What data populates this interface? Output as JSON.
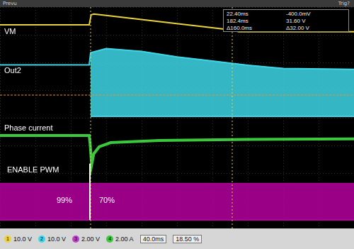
{
  "chart_data": {
    "type": "line",
    "xlim": [
      -80,
      320
    ],
    "xticks": [
      -80,
      -40,
      0,
      40,
      80,
      120,
      160,
      200,
      240,
      280,
      320
    ],
    "ylim": [
      -4,
      4
    ],
    "yticks": [
      -4,
      -3,
      -2,
      -1,
      0,
      1,
      2,
      3,
      4
    ],
    "grid": true,
    "tick_labels": false,
    "series": [
      {
        "name": "VM",
        "color": "#e8d43a",
        "x": [
          -80,
          20.8,
          23,
          26,
          40,
          180,
          190,
          320
        ],
        "values": [
          3.36,
          3.36,
          3.72,
          3.75,
          3.7,
          3.18,
          3.11,
          3.11
        ]
      },
      {
        "name": "Out2",
        "color": "#3ed6e6",
        "x": [
          -80,
          20.8,
          22.4,
          40,
          80,
          120,
          160,
          200,
          240,
          320
        ],
        "values": [
          1.91,
          1.91,
          2.35,
          2.5,
          2.4,
          2.2,
          2.05,
          1.9,
          1.78,
          1.75
        ],
        "low": [
          null,
          null,
          0.05,
          0.05,
          0.05,
          0.05,
          0.05,
          0.05,
          0.05,
          0.05
        ]
      },
      {
        "name": "Phase current",
        "color": "#3cc83c",
        "x": [
          -80,
          20.8,
          22,
          23.5,
          26,
          32,
          45,
          100,
          200,
          320
        ],
        "values": [
          -0.64,
          -0.64,
          -1.0,
          -1.71,
          -1.3,
          -1.05,
          -0.9,
          -0.82,
          -0.78,
          -0.76
        ]
      },
      {
        "name": "ENABLE PWM",
        "color": "#b4009c",
        "x": [
          -80,
          320
        ],
        "values": [
          -2.37,
          -2.37
        ],
        "low": [
          -3.69,
          -3.69
        ]
      }
    ],
    "annotations": [
      {
        "text": "99%"
      },
      {
        "text": "70%"
      }
    ],
    "lines": [
      {
        "x": [
          21.6,
          21.6
        ],
        "y": [
          -1.66,
          -3.69
        ],
        "color": "#ffffff"
      },
      {
        "x": [
          -80,
          320
        ],
        "y": [
          0.82,
          0.82
        ],
        "color": "#ff8c1a"
      }
    ],
    "cursors": {
      "x": [
        22.4,
        182.4
      ],
      "color": "#e8d43a",
      "readout": [
        [
          "22.40ms",
          "-400.0mV"
        ],
        [
          "182.4ms",
          "31.60 V"
        ],
        [
          "Δ160.0ms",
          "Δ32.00 V"
        ]
      ]
    },
    "header": {
      "left": "Prevu",
      "right": "Trig?"
    },
    "status_bar": {
      "channels": [
        {
          "label": "1",
          "text": "10.0 V",
          "color": "#e8d43a"
        },
        {
          "label": "2",
          "text": "10.0 V",
          "color": "#3ed6e6"
        },
        {
          "label": "3",
          "text": "2.00 V",
          "color": "#c040c0"
        },
        {
          "label": "4",
          "text": "2.00 A",
          "color": "#3cc83c"
        }
      ],
      "timebase": "40.0ms",
      "trigger": "18.50 %"
    }
  }
}
